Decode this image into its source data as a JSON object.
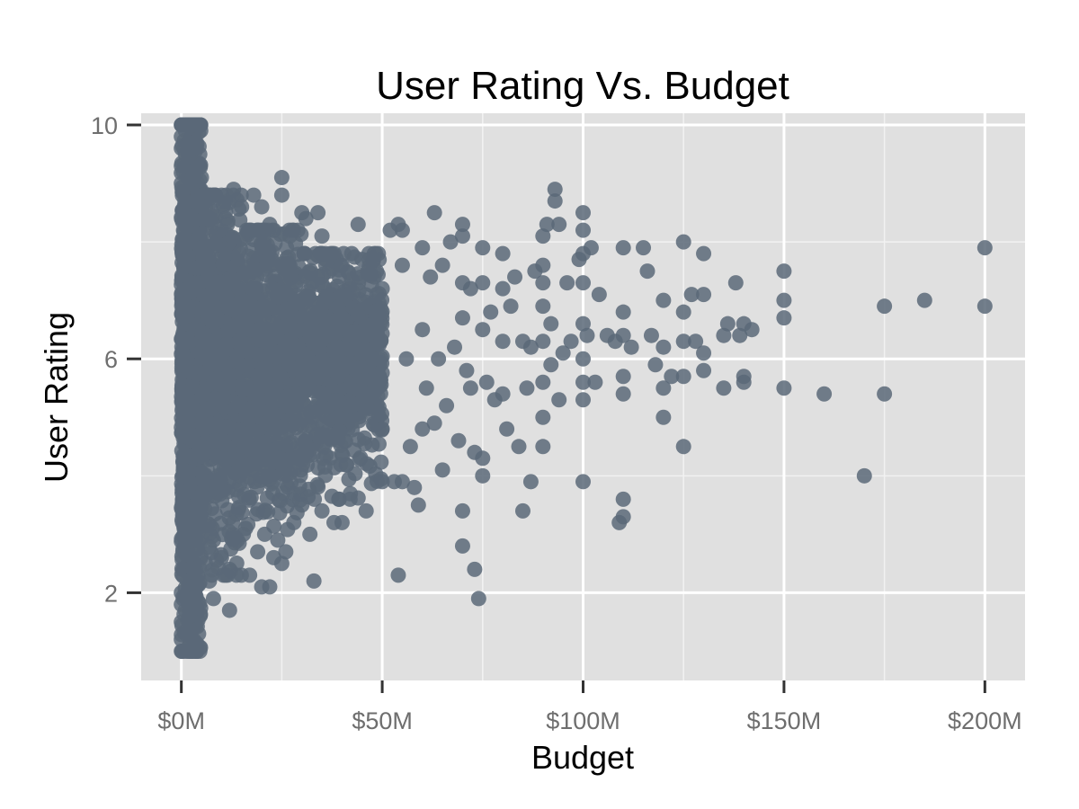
{
  "chart_data": {
    "type": "scatter",
    "title": "User Rating Vs. Budget",
    "xlabel": "Budget",
    "ylabel": "User Rating",
    "xlim": [
      -10,
      210
    ],
    "ylim": [
      0.5,
      10.2
    ],
    "x_ticks": [
      0,
      50,
      100,
      150,
      200
    ],
    "x_tick_labels": [
      "$0M",
      "$50M",
      "$100M",
      "$150M",
      "$200M"
    ],
    "y_ticks": [
      2,
      6,
      10
    ],
    "y_tick_labels": [
      "2",
      "6",
      "10"
    ],
    "grid": true,
    "legend": "none",
    "point_color": "#5a6878",
    "panel_background": "#e0e0e0",
    "dense_region": {
      "description_ranges": [
        {
          "x_min": 0,
          "x_max": 5,
          "y_min": 1.0,
          "y_max": 10.0
        },
        {
          "x_min": 5,
          "x_max": 15,
          "y_min": 2.3,
          "y_max": 8.8
        },
        {
          "x_min": 15,
          "x_max": 30,
          "y_min": 3.0,
          "y_max": 8.2
        },
        {
          "x_min": 30,
          "x_max": 50,
          "y_min": 3.6,
          "y_max": 7.8
        }
      ]
    },
    "points": [
      [
        0,
        10.0
      ],
      [
        0,
        9.8
      ],
      [
        0,
        9.6
      ],
      [
        0,
        9.3
      ],
      [
        0,
        9.0
      ],
      [
        0,
        1.0
      ],
      [
        0,
        1.2
      ],
      [
        0,
        1.5
      ],
      [
        0,
        1.8
      ],
      [
        0,
        2.0
      ],
      [
        1,
        9.9
      ],
      [
        1,
        9.5
      ],
      [
        1,
        1.0
      ],
      [
        1,
        1.3
      ],
      [
        1,
        1.7
      ],
      [
        2,
        9.7
      ],
      [
        2,
        1.1
      ],
      [
        2,
        1.6
      ],
      [
        3,
        9.7
      ],
      [
        3,
        1.2
      ],
      [
        3,
        9.2
      ],
      [
        4,
        8.7
      ],
      [
        4,
        2.3
      ],
      [
        5,
        9.1
      ],
      [
        6,
        8.6
      ],
      [
        6,
        2.5
      ],
      [
        7,
        8.4
      ],
      [
        7,
        2.2
      ],
      [
        8,
        8.7
      ],
      [
        8,
        1.9
      ],
      [
        10,
        8.8
      ],
      [
        10,
        2.6
      ],
      [
        11,
        8.4
      ],
      [
        12,
        1.7
      ],
      [
        12,
        2.4
      ],
      [
        13,
        8.9
      ],
      [
        14,
        2.9
      ],
      [
        15,
        8.6
      ],
      [
        16,
        3.1
      ],
      [
        17,
        2.3
      ],
      [
        18,
        8.8
      ],
      [
        19,
        2.7
      ],
      [
        20,
        2.1
      ],
      [
        20,
        8.6
      ],
      [
        22,
        2.1
      ],
      [
        22,
        8.3
      ],
      [
        23,
        2.6
      ],
      [
        24,
        2.9
      ],
      [
        25,
        9.1
      ],
      [
        25,
        8.8
      ],
      [
        25,
        2.5
      ],
      [
        26,
        2.7
      ],
      [
        27,
        8.1
      ],
      [
        28,
        3.2
      ],
      [
        30,
        8.5
      ],
      [
        30,
        3.5
      ],
      [
        31,
        8.4
      ],
      [
        32,
        3.0
      ],
      [
        33,
        2.2
      ],
      [
        34,
        8.5
      ],
      [
        35,
        8.1
      ],
      [
        35,
        3.4
      ],
      [
        38,
        3.2
      ],
      [
        40,
        3.2
      ],
      [
        40,
        7.6
      ],
      [
        42,
        3.6
      ],
      [
        44,
        8.3
      ],
      [
        45,
        7.7
      ],
      [
        46,
        3.4
      ],
      [
        48,
        7.4
      ],
      [
        50,
        3.9
      ],
      [
        50,
        4.8
      ],
      [
        50,
        7.2
      ],
      [
        52,
        8.2
      ],
      [
        53,
        3.9
      ],
      [
        54,
        2.3
      ],
      [
        54,
        8.3
      ],
      [
        55,
        3.9
      ],
      [
        55,
        8.2
      ],
      [
        55,
        7.6
      ],
      [
        56,
        6.0
      ],
      [
        57,
        4.5
      ],
      [
        58,
        3.8
      ],
      [
        59,
        3.5
      ],
      [
        60,
        7.9
      ],
      [
        60,
        4.8
      ],
      [
        60,
        6.5
      ],
      [
        61,
        5.5
      ],
      [
        62,
        7.4
      ],
      [
        63,
        8.5
      ],
      [
        63,
        4.9
      ],
      [
        64,
        6.0
      ],
      [
        65,
        4.1
      ],
      [
        65,
        7.6
      ],
      [
        66,
        5.2
      ],
      [
        67,
        8.0
      ],
      [
        68,
        6.2
      ],
      [
        69,
        4.6
      ],
      [
        70,
        3.4
      ],
      [
        70,
        2.8
      ],
      [
        70,
        8.1
      ],
      [
        70,
        8.3
      ],
      [
        70,
        7.3
      ],
      [
        70,
        6.7
      ],
      [
        71,
        5.8
      ],
      [
        72,
        7.2
      ],
      [
        72,
        5.5
      ],
      [
        73,
        4.4
      ],
      [
        73,
        2.4
      ],
      [
        74,
        1.9
      ],
      [
        75,
        4.0
      ],
      [
        75,
        4.3
      ],
      [
        75,
        7.9
      ],
      [
        75,
        7.3
      ],
      [
        75,
        6.5
      ],
      [
        76,
        5.6
      ],
      [
        77,
        6.8
      ],
      [
        78,
        5.3
      ],
      [
        80,
        7.8
      ],
      [
        80,
        7.2
      ],
      [
        80,
        6.3
      ],
      [
        80,
        5.4
      ],
      [
        81,
        4.8
      ],
      [
        82,
        6.9
      ],
      [
        83,
        7.4
      ],
      [
        84,
        4.5
      ],
      [
        85,
        3.4
      ],
      [
        85,
        6.3
      ],
      [
        86,
        5.5
      ],
      [
        87,
        6.2
      ],
      [
        87,
        3.9
      ],
      [
        88,
        7.5
      ],
      [
        90,
        8.1
      ],
      [
        90,
        7.6
      ],
      [
        90,
        7.3
      ],
      [
        90,
        6.9
      ],
      [
        90,
        6.3
      ],
      [
        90,
        5.6
      ],
      [
        90,
        5.0
      ],
      [
        90,
        4.5
      ],
      [
        91,
        8.3
      ],
      [
        92,
        5.9
      ],
      [
        92,
        6.6
      ],
      [
        93,
        8.9
      ],
      [
        93,
        8.7
      ],
      [
        94,
        8.3
      ],
      [
        94,
        5.3
      ],
      [
        95,
        6.1
      ],
      [
        96,
        7.3
      ],
      [
        97,
        6.3
      ],
      [
        99,
        7.7
      ],
      [
        100,
        8.5
      ],
      [
        100,
        8.2
      ],
      [
        100,
        7.8
      ],
      [
        100,
        7.3
      ],
      [
        100,
        6.6
      ],
      [
        100,
        6.0
      ],
      [
        100,
        5.6
      ],
      [
        100,
        5.3
      ],
      [
        100,
        3.9
      ],
      [
        101,
        6.4
      ],
      [
        102,
        7.9
      ],
      [
        103,
        5.6
      ],
      [
        104,
        7.1
      ],
      [
        106,
        6.4
      ],
      [
        108,
        6.3
      ],
      [
        109,
        3.2
      ],
      [
        110,
        7.9
      ],
      [
        110,
        6.8
      ],
      [
        110,
        6.4
      ],
      [
        110,
        5.7
      ],
      [
        110,
        5.4
      ],
      [
        110,
        3.6
      ],
      [
        110,
        3.3
      ],
      [
        112,
        6.2
      ],
      [
        115,
        7.9
      ],
      [
        116,
        7.5
      ],
      [
        117,
        6.4
      ],
      [
        118,
        5.9
      ],
      [
        120,
        7.0
      ],
      [
        120,
        6.2
      ],
      [
        120,
        5.5
      ],
      [
        120,
        5.0
      ],
      [
        122,
        5.7
      ],
      [
        125,
        8.0
      ],
      [
        125,
        6.8
      ],
      [
        125,
        6.3
      ],
      [
        125,
        5.7
      ],
      [
        125,
        4.5
      ],
      [
        127,
        7.1
      ],
      [
        128,
        6.3
      ],
      [
        130,
        7.8
      ],
      [
        130,
        7.1
      ],
      [
        130,
        6.1
      ],
      [
        130,
        5.8
      ],
      [
        135,
        6.4
      ],
      [
        135,
        5.5
      ],
      [
        136,
        6.6
      ],
      [
        138,
        7.3
      ],
      [
        139,
        6.4
      ],
      [
        140,
        6.6
      ],
      [
        140,
        5.7
      ],
      [
        140,
        5.6
      ],
      [
        142,
        6.5
      ],
      [
        150,
        7.5
      ],
      [
        150,
        7.0
      ],
      [
        150,
        6.7
      ],
      [
        150,
        5.5
      ],
      [
        160,
        5.4
      ],
      [
        170,
        4.0
      ],
      [
        175,
        6.9
      ],
      [
        175,
        5.4
      ],
      [
        185,
        7.0
      ],
      [
        200,
        7.9
      ],
      [
        200,
        6.9
      ]
    ]
  }
}
